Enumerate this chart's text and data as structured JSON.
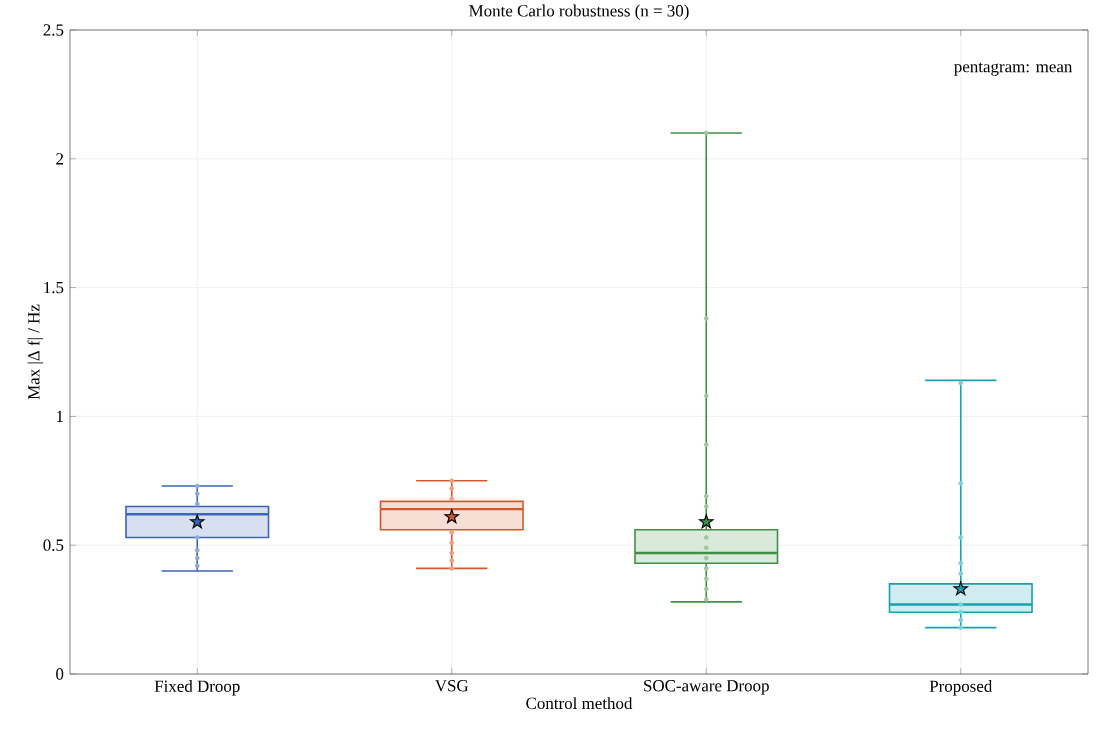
{
  "chart_data": {
    "type": "box",
    "title": "Monte Carlo robustness (n = 30)",
    "xlabel": "Control method",
    "ylabel": "Max |Δ f| / Hz",
    "categories": [
      "Fixed Droop",
      "VSG",
      "SOC-aware Droop",
      "Proposed"
    ],
    "ylim": [
      0,
      2.5
    ],
    "yticks": [
      0,
      0.5,
      1,
      1.5,
      2,
      2.5
    ],
    "grid": true,
    "colors": [
      "#3a66b5",
      "#d25a28",
      "#3f8f46",
      "#1aa0b0"
    ],
    "boxes": [
      {
        "low": 0.4,
        "q1": 0.53,
        "median": 0.62,
        "q3": 0.65,
        "high": 0.73,
        "mean": 0.59
      },
      {
        "low": 0.41,
        "q1": 0.56,
        "median": 0.64,
        "q3": 0.67,
        "high": 0.75,
        "mean": 0.61
      },
      {
        "low": 0.28,
        "q1": 0.43,
        "median": 0.47,
        "q3": 0.56,
        "high": 2.1,
        "mean": 0.59
      },
      {
        "low": 0.18,
        "q1": 0.24,
        "median": 0.27,
        "q3": 0.35,
        "high": 1.14,
        "mean": 0.33
      }
    ],
    "series": [
      {
        "type": "scatter",
        "color": "#8fa9d8",
        "x": [
          "Fixed Droop",
          "Fixed Droop",
          "Fixed Droop",
          "Fixed Droop",
          "Fixed Droop",
          "Fixed Droop",
          "Fixed Droop"
        ],
        "values": [
          0.73,
          0.7,
          0.66,
          0.53,
          0.48,
          0.45,
          0.42
        ]
      },
      {
        "type": "scatter",
        "color": "#e8a283",
        "x": [
          "VSG",
          "VSG",
          "VSG",
          "VSG",
          "VSG",
          "VSG",
          "VSG",
          "VSG"
        ],
        "values": [
          0.75,
          0.72,
          0.68,
          0.55,
          0.51,
          0.47,
          0.44,
          0.41
        ]
      },
      {
        "type": "scatter",
        "color": "#9cc79f",
        "x": [
          "SOC-aware Droop",
          "SOC-aware Droop",
          "SOC-aware Droop",
          "SOC-aware Droop",
          "SOC-aware Droop",
          "SOC-aware Droop",
          "SOC-aware Droop",
          "SOC-aware Droop",
          "SOC-aware Droop",
          "SOC-aware Droop",
          "SOC-aware Droop",
          "SOC-aware Droop",
          "SOC-aware Droop"
        ],
        "values": [
          2.1,
          1.38,
          1.08,
          0.89,
          0.69,
          0.65,
          0.53,
          0.49,
          0.45,
          0.41,
          0.37,
          0.33,
          0.29
        ]
      },
      {
        "type": "scatter",
        "color": "#7ccfd6",
        "x": [
          "Proposed",
          "Proposed",
          "Proposed",
          "Proposed",
          "Proposed",
          "Proposed",
          "Proposed",
          "Proposed",
          "Proposed"
        ],
        "values": [
          1.13,
          0.74,
          0.53,
          0.43,
          0.39,
          0.27,
          0.24,
          0.21,
          0.18
        ]
      }
    ],
    "annotations": [
      "pentagram: mean"
    ]
  }
}
